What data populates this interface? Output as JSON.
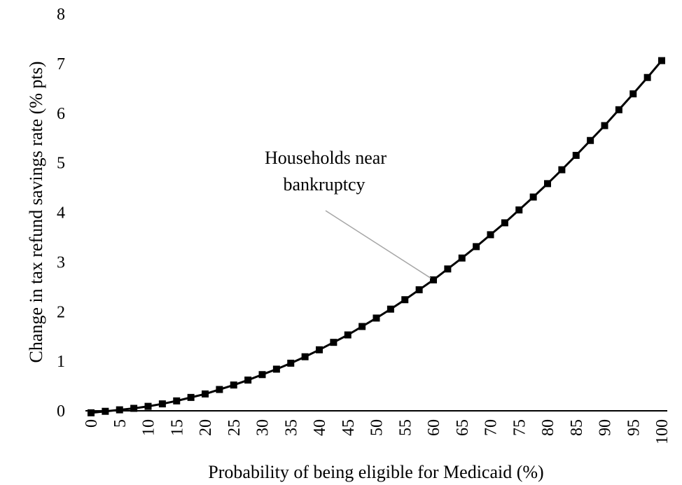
{
  "chart_data": {
    "type": "line",
    "title": "",
    "xlabel": "Probability of being eligible for Medicaid (%)",
    "ylabel": "Change in tax refund savings rate (% pts)",
    "xlim": [
      0,
      100
    ],
    "ylim": [
      0,
      8
    ],
    "x_ticks": [
      "0",
      "5",
      "10",
      "15",
      "20",
      "25",
      "30",
      "35",
      "40",
      "45",
      "50",
      "55",
      "60",
      "65",
      "70",
      "75",
      "80",
      "85",
      "90",
      "95",
      "100"
    ],
    "y_ticks": [
      "0",
      "1",
      "2",
      "3",
      "4",
      "5",
      "6",
      "7",
      "8"
    ],
    "grid": false,
    "legend": "none",
    "line_color": "#000000",
    "marker": "square",
    "annotation": {
      "lines": [
        "Households near",
        "bankruptcy"
      ],
      "points_to": {
        "x": 60,
        "y": 2.62
      },
      "arrow_color": "#a6a6a6"
    },
    "series": [
      {
        "x": [
          0,
          2.5,
          5,
          7.5,
          10,
          12.5,
          15,
          17.5,
          20,
          22.5,
          25,
          27.5,
          30,
          32.5,
          35,
          37.5,
          40,
          42.5,
          45,
          47.5,
          50,
          52.5,
          55,
          57.5,
          60,
          62.5,
          65,
          67.5,
          70,
          72.5,
          75,
          77.5,
          80,
          82.5,
          85,
          87.5,
          90,
          92.5,
          95,
          97.5,
          100
        ],
        "values": [
          -0.04,
          -0.01,
          0.02,
          0.05,
          0.09,
          0.14,
          0.2,
          0.27,
          0.34,
          0.43,
          0.52,
          0.62,
          0.73,
          0.84,
          0.96,
          1.09,
          1.23,
          1.38,
          1.53,
          1.7,
          1.87,
          2.05,
          2.24,
          2.44,
          2.64,
          2.86,
          3.08,
          3.31,
          3.55,
          3.79,
          4.05,
          4.31,
          4.58,
          4.86,
          5.15,
          5.45,
          5.75,
          6.07,
          6.39,
          6.72,
          7.06
        ]
      }
    ]
  }
}
